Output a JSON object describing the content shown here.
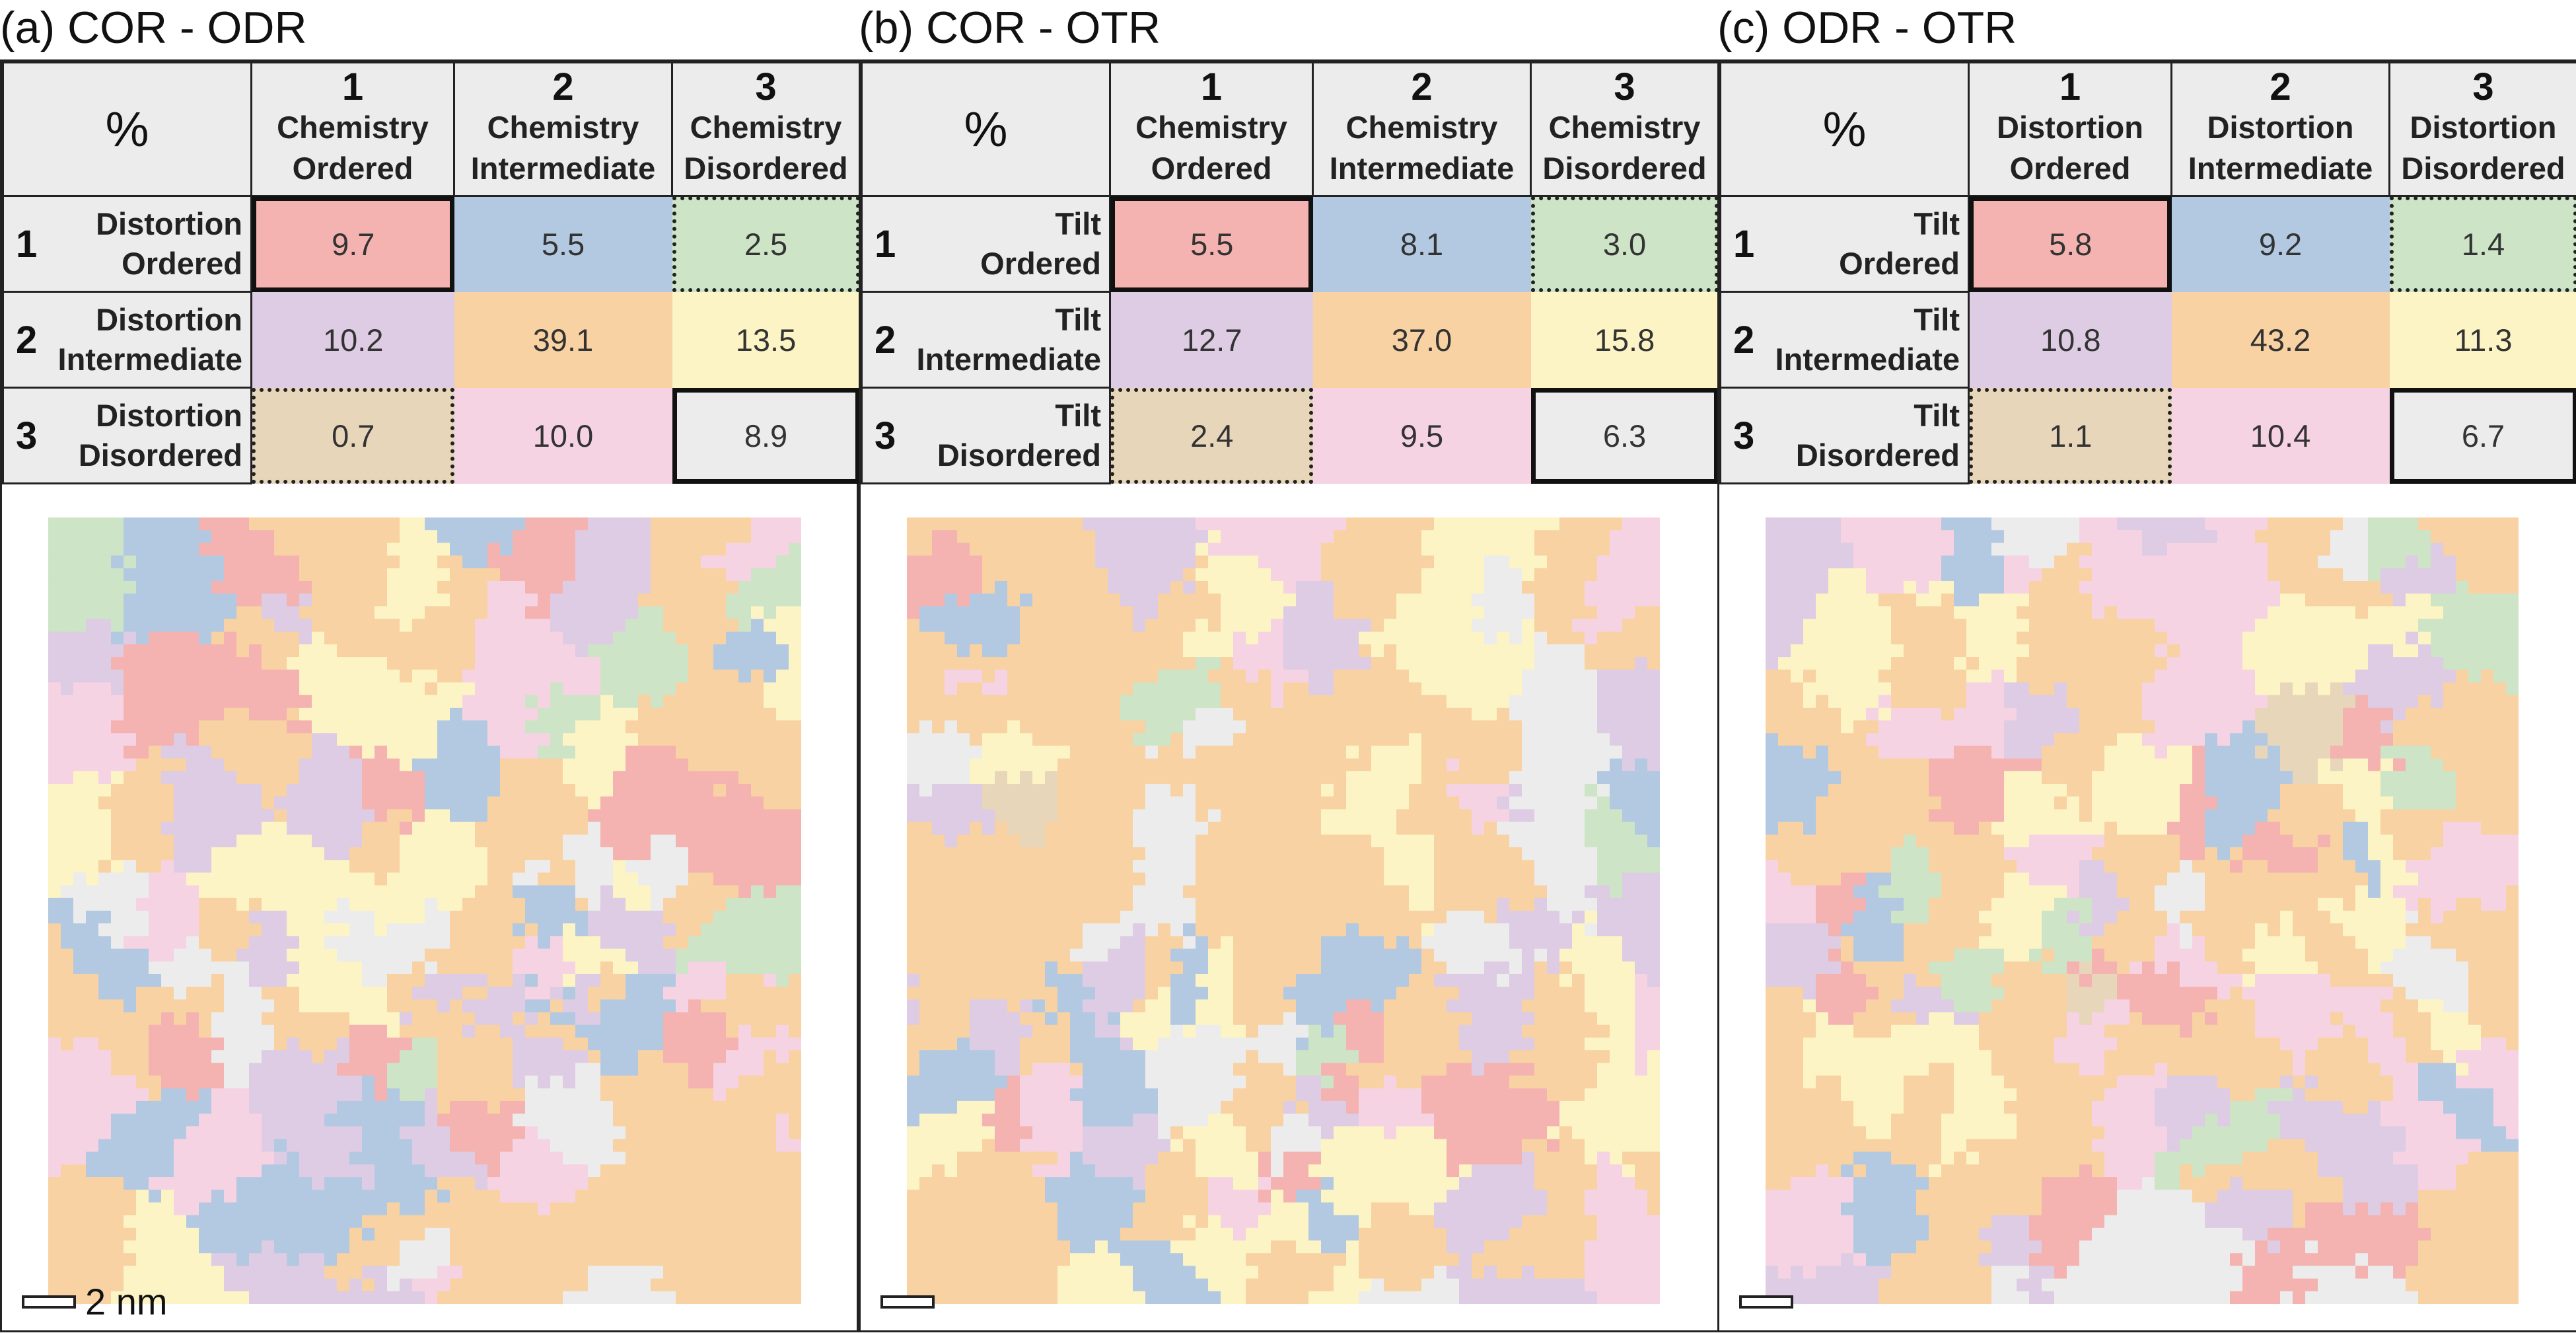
{
  "colors": {
    "red": "#f4b3b0",
    "blue": "#b3c9e2",
    "green": "#cde4c6",
    "purple": "#ddcce3",
    "orange": "#f8d2a2",
    "yellow": "#fcf4c4",
    "tan": "#e8d6bb",
    "pink": "#f6d3e3",
    "gray": "#ececec"
  },
  "corner_label": "%",
  "scale_label": "2 nm",
  "panels": [
    {
      "title": "(a) COR - ODR",
      "cols": [
        {
          "num": "1",
          "l1": "Chemistry",
          "l2": "Ordered"
        },
        {
          "num": "2",
          "l1": "Chemistry",
          "l2": "Intermediate"
        },
        {
          "num": "3",
          "l1": "Chemistry",
          "l2": "Disordered"
        }
      ],
      "rows": [
        {
          "num": "1",
          "l1": "Distortion",
          "l2": "Ordered",
          "values": [
            "9.7",
            "5.5",
            "2.5"
          ]
        },
        {
          "num": "2",
          "l1": "Distortion",
          "l2": "Intermediate",
          "values": [
            "10.2",
            "39.1",
            "13.5"
          ]
        },
        {
          "num": "3",
          "l1": "Distortion",
          "l2": "Disordered",
          "values": [
            "0.7",
            "10.0",
            "8.9"
          ]
        }
      ]
    },
    {
      "title": "(b) COR - OTR",
      "cols": [
        {
          "num": "1",
          "l1": "Chemistry",
          "l2": "Ordered"
        },
        {
          "num": "2",
          "l1": "Chemistry",
          "l2": "Intermediate"
        },
        {
          "num": "3",
          "l1": "Chemistry",
          "l2": "Disordered"
        }
      ],
      "rows": [
        {
          "num": "1",
          "l1": "Tilt",
          "l2": "Ordered",
          "values": [
            "5.5",
            "8.1",
            "3.0"
          ]
        },
        {
          "num": "2",
          "l1": "Tilt",
          "l2": "Intermediate",
          "values": [
            "12.7",
            "37.0",
            "15.8"
          ]
        },
        {
          "num": "3",
          "l1": "Tilt",
          "l2": "Disordered",
          "values": [
            "2.4",
            "9.5",
            "6.3"
          ]
        }
      ]
    },
    {
      "title": "(c) ODR - OTR",
      "cols": [
        {
          "num": "1",
          "l1": "Distortion",
          "l2": "Ordered"
        },
        {
          "num": "2",
          "l1": "Distortion",
          "l2": "Intermediate"
        },
        {
          "num": "3",
          "l1": "Distortion",
          "l2": "Disordered"
        }
      ],
      "rows": [
        {
          "num": "1",
          "l1": "Tilt",
          "l2": "Ordered",
          "values": [
            "5.8",
            "9.2",
            "1.4"
          ]
        },
        {
          "num": "2",
          "l1": "Tilt",
          "l2": "Intermediate",
          "values": [
            "10.8",
            "43.2",
            "11.3"
          ]
        },
        {
          "num": "3",
          "l1": "Tilt",
          "l2": "Disordered",
          "values": [
            "1.1",
            "10.4",
            "6.7"
          ]
        }
      ]
    }
  ]
}
